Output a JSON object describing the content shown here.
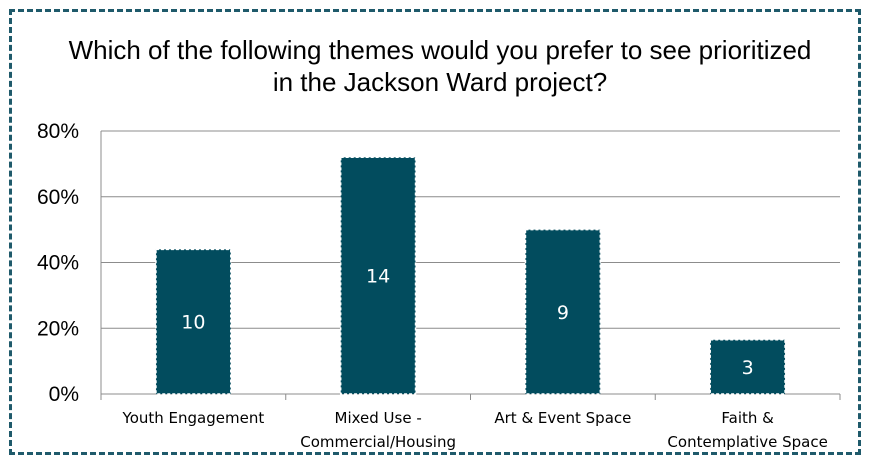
{
  "chart_data": {
    "type": "bar",
    "title": "Which of the following themes would you prefer to see prioritized in the Jackson Ward project?",
    "categories": [
      "Youth Engagement",
      "Mixed Use - Commercial/Housing",
      "Art & Event Space",
      "Faith & Contemplative Space"
    ],
    "category_lines": [
      [
        "Youth Engagement"
      ],
      [
        "Mixed Use -",
        "Commercial/Housing"
      ],
      [
        "Art & Event Space"
      ],
      [
        "Faith &",
        "Contemplative Space"
      ]
    ],
    "values": [
      44,
      72,
      50,
      16.5
    ],
    "data_labels": [
      "10",
      "14",
      "9",
      "3"
    ],
    "y_ticks": [
      0,
      20,
      40,
      60,
      80
    ],
    "y_tick_labels": [
      "0%",
      "20%",
      "40%",
      "60%",
      "80%"
    ],
    "ylim": [
      0,
      80
    ],
    "xlabel": "",
    "ylabel": "",
    "grid": true,
    "legend": "none",
    "bar_color": "#024c5e",
    "frame_color": "#1f5a6b"
  }
}
